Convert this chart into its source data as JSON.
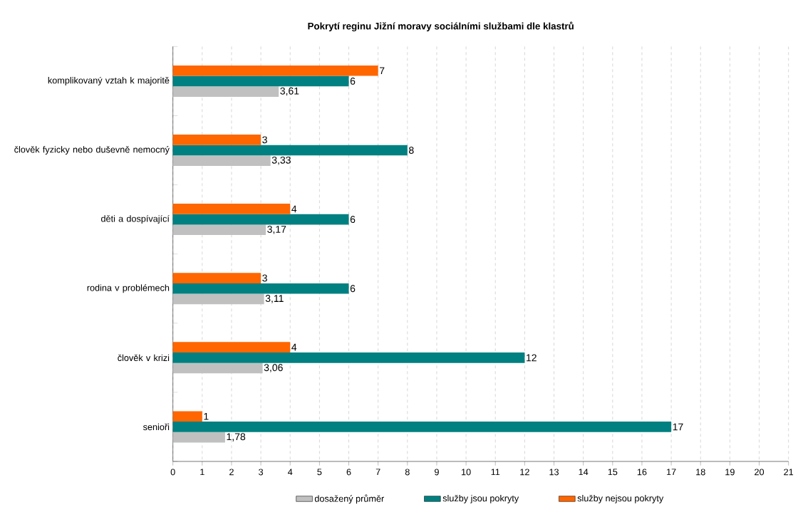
{
  "chart_data": {
    "type": "bar",
    "orientation": "horizontal",
    "title": "Pokrytí reginu Jižní moravy sociálními službami dle klastrů",
    "categories": [
      "komplikovaný vztah k majoritě",
      "člověk fyzicky nebo duševně nemocný",
      "děti a dospívající",
      "rodina v problémech",
      "člověk v krizi",
      "senioři"
    ],
    "series": [
      {
        "name": "dosažený průměr",
        "color": "#c0c0c0",
        "values": [
          3.61,
          3.33,
          3.17,
          3.11,
          3.06,
          1.78
        ],
        "value_labels": [
          "3,61",
          "3,33",
          "3,17",
          "3,11",
          "3,06",
          "1,78"
        ]
      },
      {
        "name": "služby jsou pokryty",
        "color": "#008080",
        "values": [
          6,
          8,
          6,
          6,
          12,
          17
        ],
        "value_labels": [
          "6",
          "8",
          "6",
          "6",
          "12",
          "17"
        ]
      },
      {
        "name": "služby nejsou pokryty",
        "color": "#ff6600",
        "values": [
          7,
          3,
          4,
          3,
          4,
          1
        ],
        "value_labels": [
          "7",
          "3",
          "4",
          "3",
          "4",
          "1"
        ]
      }
    ],
    "xlim": [
      0,
      21
    ],
    "xticks": [
      0,
      1,
      2,
      3,
      4,
      5,
      6,
      7,
      8,
      9,
      10,
      11,
      12,
      13,
      14,
      15,
      16,
      17,
      18,
      19,
      20,
      21
    ],
    "grid": "x",
    "legend": "bottom"
  }
}
